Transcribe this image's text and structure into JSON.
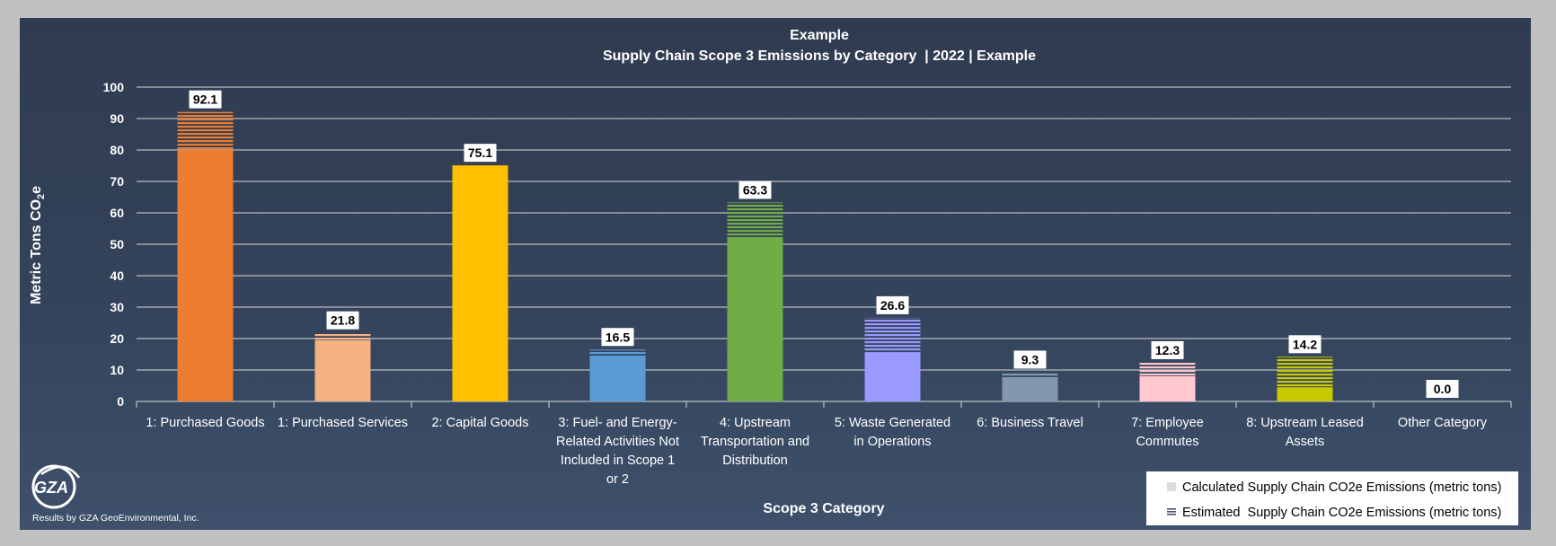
{
  "chart_data": {
    "type": "bar",
    "title": "Example",
    "subtitle": "Supply Chain Scope 3 Emissions by Category  | 2022 | Example",
    "xlabel": "Scope 3 Category",
    "ylabel": "Metric Tons CO2e",
    "ylim": [
      0,
      100
    ],
    "yticks": [
      0,
      10,
      20,
      30,
      40,
      50,
      60,
      70,
      80,
      90,
      100
    ],
    "grid": true,
    "legend_position": "bottom-right",
    "categories": [
      "1: Purchased Goods",
      "1: Purchased Services",
      "2: Capital Goods",
      "3: Fuel- and Energy-Related Activities Not Included in Scope 1 or 2",
      "4: Upstream Transportation and Distribution",
      "5: Waste Generated in Operations",
      "6: Business Travel",
      "7: Employee Commutes",
      "8: Upstream Leased Assets",
      "Other Category"
    ],
    "category_lines": [
      [
        "1: Purchased Goods"
      ],
      [
        "1: Purchased Services"
      ],
      [
        "2: Capital Goods"
      ],
      [
        "3: Fuel- and Energy-",
        "Related Activities Not",
        "Included in Scope 1",
        "or 2"
      ],
      [
        "4: Upstream",
        "Transportation and",
        "Distribution"
      ],
      [
        "5: Waste Generated",
        "in Operations"
      ],
      [
        "6: Business Travel"
      ],
      [
        "7: Employee",
        "Commutes"
      ],
      [
        "8: Upstream Leased",
        "Assets"
      ],
      [
        "Other Category"
      ]
    ],
    "colors": [
      "#ed7d31",
      "#f4b183",
      "#ffc000",
      "#5b9bd5",
      "#70ad47",
      "#9999ff",
      "#8497b0",
      "#ffc7ce",
      "#c9c900",
      "#c9c9c9"
    ],
    "series": [
      {
        "name": "Calculated Supply Chain CO2e Emissions (metric tons)",
        "pattern": "solid",
        "values": [
          80.0,
          19.5,
          75.1,
          14.0,
          52.0,
          15.5,
          7.3,
          8.0,
          4.5,
          0.0
        ]
      },
      {
        "name": "Estimated  Supply Chain CO2e Emissions (metric tons)",
        "pattern": "horizontal-stripes",
        "values": [
          12.1,
          2.3,
          0.0,
          2.5,
          11.3,
          11.1,
          2.0,
          4.3,
          9.7,
          0.0
        ]
      }
    ],
    "totals": [
      "92.1",
      "21.8",
      "75.1",
      "16.5",
      "63.3",
      "26.6",
      "9.3",
      "12.3",
      "14.2",
      "0.0"
    ]
  },
  "credit": "Results by GZA GeoEnvironmental, Inc.",
  "logo_text": "GZA"
}
